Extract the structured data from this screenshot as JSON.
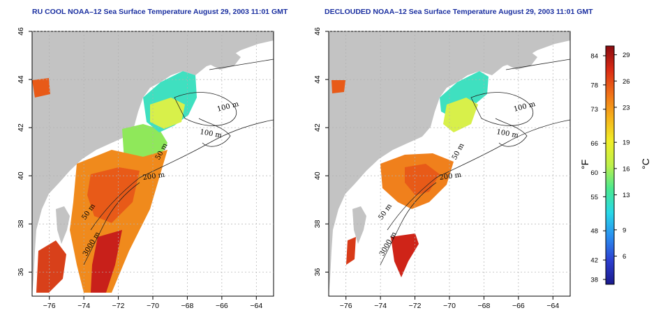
{
  "panels": [
    {
      "id": "left",
      "title": "RU COOL NOAA–12 Sea Surface Temperature August 29, 2003 11:01 GMT"
    },
    {
      "id": "right",
      "title": "DECLOUDED NOAA–12 Sea Surface Temperature August 29, 2003 11:01 GMT"
    }
  ],
  "axes": {
    "x_ticks": [
      "−76",
      "−74",
      "−72",
      "−70",
      "−68",
      "−66",
      "−64"
    ],
    "y_ticks": [
      "46",
      "44",
      "42",
      "40",
      "38",
      "36"
    ]
  },
  "contour_labels": {
    "left": [
      "100 m",
      "100 m",
      "50 m",
      "200 m",
      "50 m",
      "3000 m"
    ],
    "right": [
      "100 m",
      "100 m",
      "50 m",
      "200 m",
      "50 m",
      "3000 m"
    ]
  },
  "colorbar": {
    "fahrenheit_label": "°F",
    "celsius_label": "°C",
    "fahrenheit_ticks": [
      "84",
      "78",
      "73",
      "66",
      "60",
      "55",
      "48",
      "42",
      "38"
    ],
    "celsius_ticks": [
      "29",
      "26",
      "23",
      "19",
      "16",
      "13",
      "9",
      "6"
    ],
    "colors": [
      "#1a1a8c",
      "#2d3fd0",
      "#2a8ef0",
      "#28d8e8",
      "#49e890",
      "#bef04a",
      "#f0ee28",
      "#f6b21a",
      "#f07018",
      "#da2a14",
      "#8a0b10"
    ]
  },
  "colors": {
    "land": "#c3c3c3",
    "title": "#1a2fa0",
    "grid": "#b0b0b0"
  }
}
